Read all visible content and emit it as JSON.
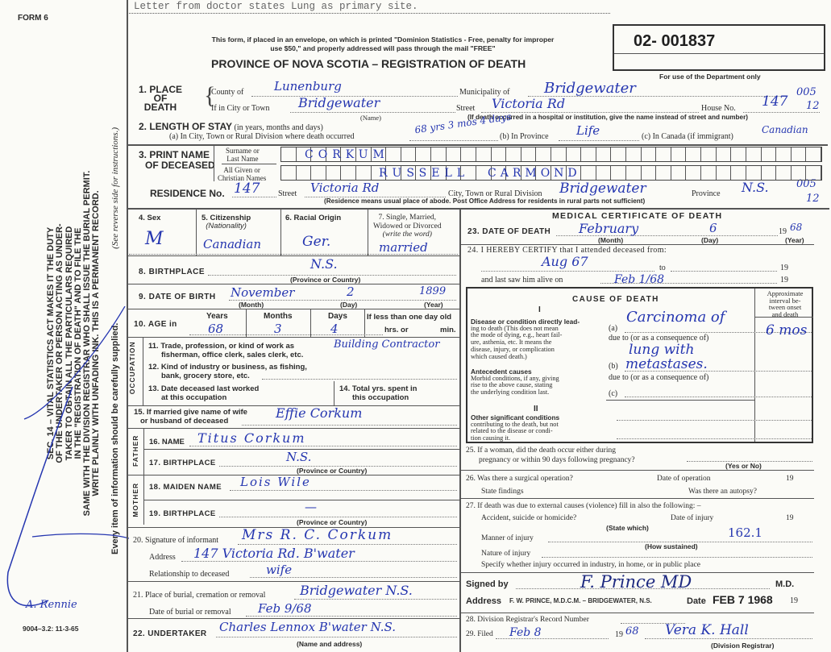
{
  "form_id": "FORM 6",
  "typed_note": "Letter from doctor states Lung as primary site.",
  "notice": [
    "This form, if placed in an envelope, on which is printed \"Dominion Statistics - Free, penalty for improper",
    "use $50,\" and properly addressed will pass through the mail \"FREE\""
  ],
  "title": "PROVINCE OF NOVA SCOTIA – REGISTRATION OF DEATH",
  "registration_number": "02- 001837",
  "department_note": "For use of the Department only",
  "margin_codes": [
    "005",
    "12",
    "005",
    "12"
  ],
  "side_text": {
    "lines": [
      "SEC. 14 – VITAL STATISTICS ACT MAKES IT THE DUTY",
      "OF THE UNDERTAKER OR PERSON ACTING AS UNDER-",
      "TAKER TO OBTAIN ALL THE PARTICULARS REQUIRED",
      "IN THE \"REGISTRATION OF DEATH\" AND TO FILE THE",
      "SAME WITH THE DIVISION REGISTRAR WHO SHALL ISSUE THE BURIAL PERMIT.",
      "WRITE PLAINLY WITH UNFADING INK. THIS IS A PERMANENT RECORD."
    ],
    "every_item": "Every item of information should be carefully supplied.",
    "see_reverse": "(See reverse side for instructions.)",
    "form_code": "9004–3.2: 11-3-65",
    "signature": "A. Rennie"
  },
  "place_of_death": {
    "label": [
      "1. PLACE",
      "OF",
      "DEATH"
    ],
    "county_label": "County of",
    "county": "Lunenburg",
    "municipality_label": "Municipality of",
    "municipality": "Bridgewater",
    "city_label": "If in City or Town",
    "city": "Bridgewater",
    "name_note": "(Name)",
    "street_label": "Street",
    "street": "Victoria Rd",
    "house_label": "House No.",
    "house": "147",
    "hospital_note": "(If death occurred in a hospital or institution, give the name instead of street and number)"
  },
  "length_of_stay": {
    "label": "2. LENGTH OF STAY",
    "sub": "(in years, months and days)",
    "a_label": "(a) In City, Town or Rural Division where death occurred",
    "a": "68 yrs 3 mos 4 days",
    "b_label": "(b) In Province",
    "b": "Life",
    "c_label": "(c) In Canada (if immigrant)",
    "c": "Canadian"
  },
  "name": {
    "label": [
      "3. PRINT NAME",
      "OF DECEASED"
    ],
    "surname_label": [
      "Surname or",
      "Last Name"
    ],
    "surname": "CORKUM",
    "given_label": [
      "All Given or",
      "Christian Names"
    ],
    "given_first": "RUSSELL",
    "given_second": "CARMOND"
  },
  "residence": {
    "label": "RESIDENCE No.",
    "no": "147",
    "street_label": "Street",
    "street": "Victoria Rd",
    "city_label": "City, Town or Rural Division",
    "city": "Bridgewater",
    "province_label": "Province",
    "province": "N.S.",
    "note": "(Residence means usual place of abode. Post Office Address for residents in rural parts not sufficient)"
  },
  "personal": {
    "sex_label": "4. Sex",
    "sex": "M",
    "citizenship_label": [
      "5. Citizenship",
      "(Nationality)"
    ],
    "citizenship": "Canadian",
    "racial_label": "6. Racial Origin",
    "racial": "Ger.",
    "marital_label": [
      "7. Single, Married,",
      "Widowed or Divorced",
      "(write the word)"
    ],
    "marital": "married",
    "birthplace_label": "8. BIRTHPLACE",
    "birthplace": "N.S.",
    "province_note": "(Province or Country)",
    "dob_label": "9. DATE OF BIRTH",
    "dob_month": "November",
    "dob_day": "2",
    "dob_year": "1899",
    "month_note": "(Month)",
    "day_note": "(Day)",
    "year_note": "(Year)",
    "age_label": "10. AGE in",
    "years_label": "Years",
    "years": "68",
    "months_label": "Months",
    "months": "3",
    "days_label": "Days",
    "days": "4",
    "less_label": "If less than one day old",
    "hrs_label": "hrs. or",
    "min_label": "min."
  },
  "occupation": {
    "section": "OCCUPATION",
    "trade_label": [
      "11. Trade, profession, or kind of work as",
      "fisherman, office clerk, sales clerk, etc."
    ],
    "trade": "Building Contractor",
    "industry_label": [
      "12. Kind of industry or business, as fishing,",
      "bank, grocery store, etc."
    ],
    "last_worked_label": [
      "13. Date deceased last worked",
      "at this occupation"
    ],
    "total_years_label": [
      "14. Total yrs. spent in",
      "this occupation"
    ]
  },
  "spouse": {
    "label": [
      "15. If married give name of wife",
      "or husband of deceased"
    ],
    "value": "Effie Corkum"
  },
  "father": {
    "section": "FATHER",
    "name_label": "16. NAME",
    "name": "Titus Corkum",
    "birthplace_label": "17. BIRTHPLACE",
    "birthplace": "N.S."
  },
  "mother": {
    "section": "MOTHER",
    "maiden_label": "18. MAIDEN NAME",
    "maiden": "Lois Wile",
    "birthplace_label": "19. BIRTHPLACE",
    "birthplace": "—"
  },
  "informant": {
    "label": "20. Signature of informant",
    "signature": "Mrs R. C. Corkum",
    "address_label": "Address",
    "address": "147 Victoria Rd. B'water",
    "relationship_label": "Relationship to deceased",
    "relationship": "wife"
  },
  "burial": {
    "place_label": "21. Place of burial, cremation or removal",
    "place": "Bridgewater N.S.",
    "date_label": "Date of burial or removal",
    "date": "Feb 9/68"
  },
  "undertaker": {
    "label": "22. UNDERTAKER",
    "value": "Charles Lennox B'water N.S.",
    "note": "(Name and address)"
  },
  "medical": {
    "title": "MEDICAL CERTIFICATE OF DEATH",
    "dod_label": "23. DATE OF DEATH",
    "dod_month": "February",
    "dod_day": "6",
    "dod_year_prefix": "19",
    "dod_year": "68",
    "certify_label": "24. I HEREBY CERTIFY that I attended deceased from:",
    "from": "Aug 67",
    "to_label": "to",
    "nineteen": "19",
    "last_saw_label": "and last saw him alive on",
    "last_saw": "Feb 1/68",
    "cause": {
      "title": "CAUSE OF DEATH",
      "part_one": "I",
      "part_two": "II",
      "interval_header": [
        "Approximate",
        "interval be-",
        "tween onset",
        "and death"
      ],
      "direct_label": [
        "Disease or condition directly lead-",
        "ing to death (This does not mean",
        "the mode of dying, e.g., heart fail-",
        "ure, asthenia, etc. It means the",
        "disease, injury, or complication",
        "which caused death.)"
      ],
      "antecedent_label": [
        "Antecedent causes",
        "Morbid conditions, if any, giving",
        "rise to the above cause, stating",
        "the underlying condition last."
      ],
      "other_label": [
        "Other significant conditions",
        "contributing to the death, but not",
        "related to the disease or condi-",
        "tion causing it."
      ],
      "a_label": "(a)",
      "b_label": "(b)",
      "c_label": "(c)",
      "due_to": "due to (or as a consequence of)",
      "a": "Carcinoma of",
      "a2": "lung with",
      "b": "metastases.",
      "interval": "6 mos"
    },
    "q25": [
      "25. If a woman, did the death occur either during",
      "pregnancy or within 90 days following pregnancy?"
    ],
    "yes_no": "(Yes or No)",
    "q26": "26. Was there a surgical operation?",
    "op_date": "Date of operation",
    "findings": "State findings",
    "autopsy": "Was there an autopsy?",
    "q27": "27. If death was due to external causes (violence) fill in also the following: –",
    "accident": "Accident, suicide or homicide?",
    "state_which": "(State which)",
    "injury_date": "Date of injury",
    "manner": "Manner of injury",
    "how": "(How sustained)",
    "code": "162.1",
    "nature": "Nature of injury",
    "specify": "Specify whether injury occurred in industry, in home, or in public place",
    "signed_label": "Signed by",
    "signature": "F. Prince MD",
    "md": "M.D.",
    "address_label": "Address",
    "address_stamp": "F. W. PRINCE, M.D.C.M. – BRIDGEWATER, N.S.",
    "date_label": "Date",
    "date_stamp": "FEB 7 1968",
    "q28": "28. Division Registrar's Record Number",
    "q29": "29. Filed",
    "filed": "Feb 8",
    "filed_year_prefix": "19",
    "filed_year": "68",
    "registrar": "Vera K. Hall",
    "registrar_note": "(Division Registrar)"
  },
  "colors": {
    "ink": "#2536b0",
    "paper": "#fbfbf7",
    "print": "#2a2a2a"
  }
}
